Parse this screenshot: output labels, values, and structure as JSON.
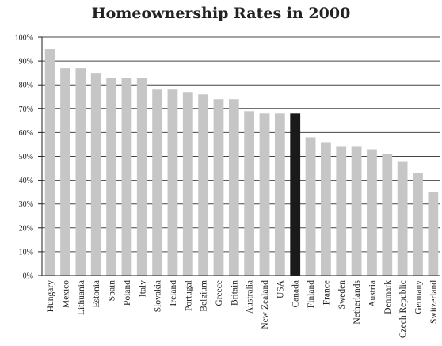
{
  "chart_data": {
    "type": "bar",
    "title": "Homeownership Rates in 2000",
    "xlabel": "",
    "ylabel": "",
    "ylim": [
      0,
      100
    ],
    "yticks": [
      "0%",
      "10%",
      "20%",
      "30%",
      "40%",
      "50%",
      "60%",
      "70%",
      "80%",
      "90%",
      "100%"
    ],
    "grid": true,
    "bar_color": "#c6c6c6",
    "highlight_color": "#1a1a1a",
    "highlight_category": "Canada",
    "categories": [
      "Hungary",
      "Mexico",
      "Lithuania",
      "Estonia",
      "Spain",
      "Poland",
      "Italy",
      "Slovakia",
      "Ireland",
      "Portugal",
      "Belgium",
      "Greece",
      "Britain",
      "Australia",
      "New Zealand",
      "USA",
      "Canada",
      "Finland",
      "France",
      "Sweden",
      "Netherlands",
      "Austria",
      "Denmark",
      "Czech Republic",
      "Germany",
      "Switzerland"
    ],
    "values": [
      95,
      87,
      87,
      85,
      83,
      83,
      83,
      78,
      78,
      77,
      76,
      74,
      74,
      69,
      68,
      68,
      68,
      58,
      56,
      54,
      54,
      53,
      51,
      48,
      43,
      35
    ]
  }
}
